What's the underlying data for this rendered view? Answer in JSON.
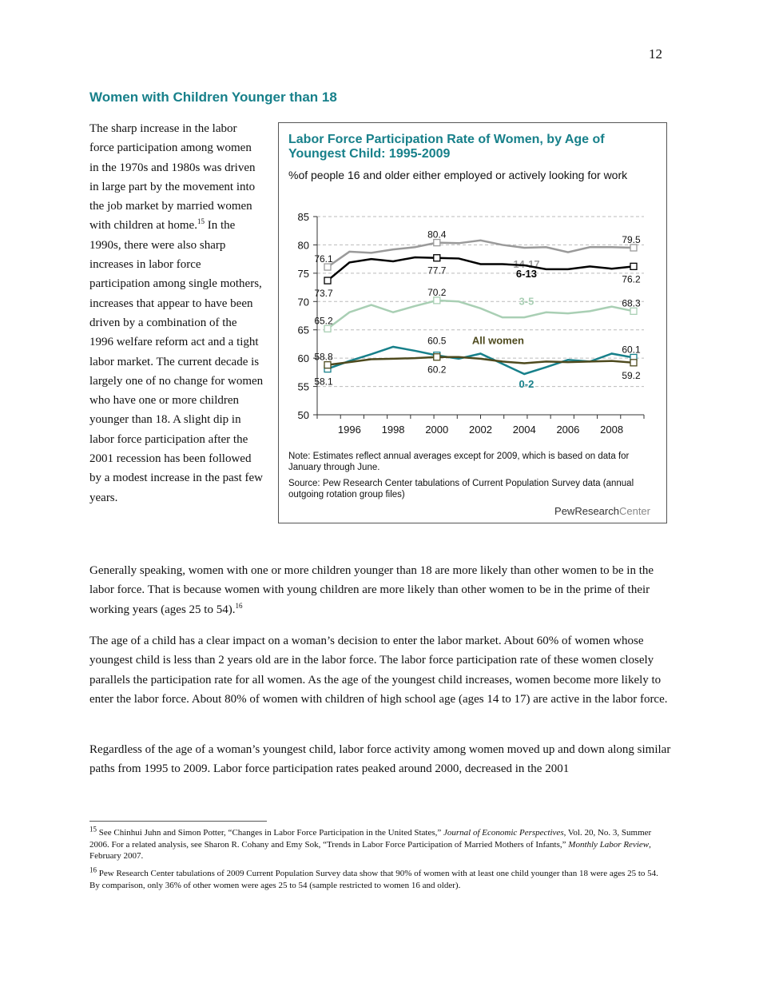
{
  "page_number": "12",
  "heading": "Women with Children Younger than 18",
  "left_text": {
    "a": "The sharp increase in the labor force participation among women in the 1970s and 1980s was driven in large part by the movement into the job market by married women with children at home.",
    "sup": "15",
    "b": " In the 1990s, there were also sharp increases in labor force participation among single mothers, increases that appear to have been driven by a combination of the 1996 welfare reform act and a tight labor market. The current decade is largely one of no change for women who have one or more children younger than 18. A slight dip in labor force participation after the 2001 recession has been followed by a modest increase in the past few years."
  },
  "chart_data": {
    "type": "line",
    "title": "Labor Force Participation Rate of Women, by Age of Youngest Child: 1995-2009",
    "subtitle": "%of people 16 and older either employed or actively looking for work",
    "x": [
      1995,
      1996,
      1997,
      1998,
      1999,
      2000,
      2001,
      2002,
      2003,
      2004,
      2005,
      2006,
      2007,
      2008,
      2009
    ],
    "x_ticks": [
      "1996",
      "1998",
      "2000",
      "2002",
      "2004",
      "2006",
      "2008"
    ],
    "y_ticks": [
      "50",
      "55",
      "60",
      "65",
      "70",
      "75",
      "80",
      "85"
    ],
    "ylim": [
      50,
      85
    ],
    "grid": "horizontal dashed",
    "series": [
      {
        "name": "14-17",
        "color": "#9a9a9a",
        "values": [
          76.1,
          78.8,
          78.6,
          79.2,
          79.6,
          80.4,
          80.3,
          80.8,
          80.0,
          79.5,
          79.6,
          78.7,
          79.6,
          79.6,
          79.5
        ],
        "labels": [
          "76.1",
          "80.4",
          "79.5"
        ]
      },
      {
        "name": "6-13",
        "color": "#000000",
        "values": [
          73.7,
          76.9,
          77.5,
          77.1,
          77.8,
          77.7,
          77.6,
          76.6,
          76.6,
          76.4,
          75.7,
          75.7,
          76.2,
          75.8,
          76.2
        ],
        "labels": [
          "73.7",
          "77.7",
          "76.2"
        ]
      },
      {
        "name": "3-5",
        "color": "#a9cfb4",
        "values": [
          65.2,
          68.1,
          69.4,
          68.1,
          69.2,
          70.2,
          70.0,
          68.8,
          67.2,
          67.2,
          68.1,
          67.9,
          68.3,
          69.1,
          68.3
        ],
        "labels": [
          "65.2",
          "70.2",
          "68.3"
        ]
      },
      {
        "name": "0-2",
        "color": "#17808a",
        "values": [
          58.1,
          59.5,
          60.7,
          62.0,
          61.3,
          60.5,
          59.9,
          60.8,
          59.0,
          57.2,
          58.4,
          59.7,
          59.4,
          60.8,
          60.1
        ],
        "labels": [
          "58.1",
          "60.5",
          "60.1"
        ]
      },
      {
        "name": "All women",
        "color": "#4e4a1e",
        "values": [
          58.8,
          59.3,
          59.8,
          59.9,
          60.0,
          60.2,
          60.2,
          59.9,
          59.4,
          59.1,
          59.4,
          59.3,
          59.4,
          59.5,
          59.2
        ],
        "labels": [
          "58.8",
          "60.2",
          "59.2"
        ]
      }
    ],
    "note": "Note: Estimates reflect annual averages except for 2009, which is based on data for January through June.",
    "source": "Source: Pew Research Center tabulations of Current Population Survey data (annual outgoing rotation group files)",
    "logo": {
      "a": "PewResearch",
      "b": "Center"
    }
  },
  "paragraphs": [
    {
      "text": "Generally speaking, women with one or more children younger than 18 are more likely than other women to be in the labor force. That is because women with young children are more likely than other women to be in the prime of their working years (ages 25 to 54).",
      "sup": "16"
    },
    {
      "text": "The age of a child has a clear impact on a woman’s decision to enter the labor market. About 60% of women whose youngest child is less than 2 years old are in the labor force. The labor force participation rate of these women closely parallels the participation rate for all women. As the age of the youngest child increases, women become more likely to enter the labor force. About 80% of women with children of high school age (ages 14 to 17) are active in the labor force."
    },
    {
      "text": "Regardless of the age of a woman’s youngest child, labor force activity among women moved up and down along similar paths from 1995 to 2009. Labor force participation rates peaked around 2000, decreased in the 2001"
    }
  ],
  "footnotes": [
    {
      "num": "15",
      "a": " See Chinhui Juhn and Simon Potter, “Changes in Labor Force Participation in the United States,” ",
      "i1": "Journal of Economic Perspectives",
      "b": ", Vol. 20, No. 3, Summer 2006. For a related analysis, see Sharon R. Cohany and Emy Sok, “Trends in Labor Force Participation of Married Mothers of Infants,” ",
      "i2": "Monthly Labor Review",
      "c": ", February 2007."
    },
    {
      "num": "16",
      "a": " Pew Research Center tabulations of 2009 Current Population Survey data show that 90% of women with at least one child younger than 18 were ages 25 to 54. By comparison, only 36% of other women were ages 25 to 54 (sample restricted to women 16 and older)."
    }
  ]
}
